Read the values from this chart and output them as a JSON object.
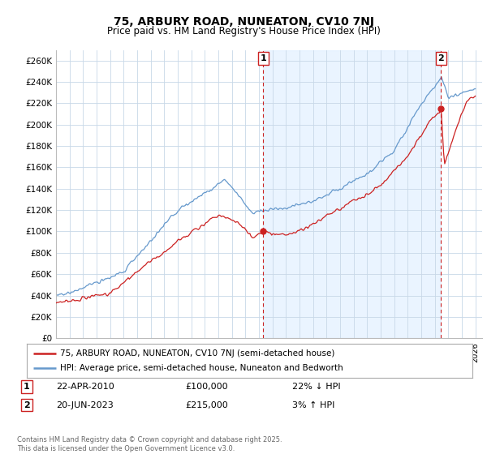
{
  "title": "75, ARBURY ROAD, NUNEATON, CV10 7NJ",
  "subtitle": "Price paid vs. HM Land Registry's House Price Index (HPI)",
  "ylim": [
    0,
    270000
  ],
  "yticks": [
    0,
    20000,
    40000,
    60000,
    80000,
    100000,
    120000,
    140000,
    160000,
    180000,
    200000,
    220000,
    240000,
    260000
  ],
  "ytick_labels": [
    "£0",
    "£20K",
    "£40K",
    "£60K",
    "£80K",
    "£100K",
    "£120K",
    "£140K",
    "£160K",
    "£180K",
    "£200K",
    "£220K",
    "£240K",
    "£260K"
  ],
  "hpi_color": "#6699cc",
  "price_color": "#cc2222",
  "marker1_x": 2010.31,
  "marker1_y": 100000,
  "marker2_x": 2023.47,
  "marker2_y": 215000,
  "vline1_x": 2010.31,
  "vline2_x": 2023.47,
  "legend_entry1": "75, ARBURY ROAD, NUNEATON, CV10 7NJ (semi-detached house)",
  "legend_entry2": "HPI: Average price, semi-detached house, Nuneaton and Bedworth",
  "annotation1_label": "1",
  "annotation1_date": "22-APR-2010",
  "annotation1_price": "£100,000",
  "annotation1_hpi": "22% ↓ HPI",
  "annotation2_label": "2",
  "annotation2_date": "20-JUN-2023",
  "annotation2_price": "£215,000",
  "annotation2_hpi": "3% ↑ HPI",
  "footer": "Contains HM Land Registry data © Crown copyright and database right 2025.\nThis data is licensed under the Open Government Licence v3.0.",
  "bg_color": "#ffffff",
  "grid_color": "#c8d8e8",
  "shade_color": "#ddeeff",
  "xlim_start": 1995.0,
  "xlim_end": 2026.5,
  "xtick_start": 1995,
  "xtick_end": 2027
}
